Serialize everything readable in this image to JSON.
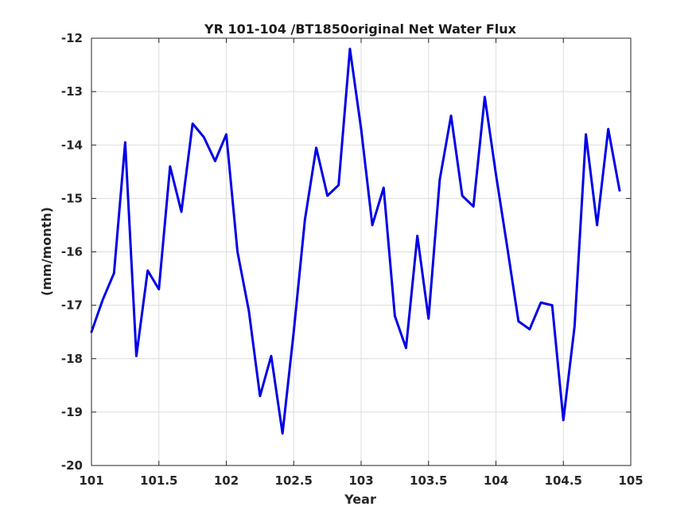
{
  "chart_data": {
    "type": "line",
    "title": "YR 101-104 /BT1850original Net Water Flux",
    "xlabel": "Year",
    "ylabel": "(mm/month)",
    "xlim": [
      101,
      105
    ],
    "ylim": [
      -20,
      -12
    ],
    "xticks": [
      101,
      101.5,
      102,
      102.5,
      103,
      103.5,
      104,
      104.5,
      105
    ],
    "xtick_labels": [
      "101",
      "101.5",
      "102",
      "102.5",
      "103",
      "103.5",
      "104",
      "104.5",
      "105"
    ],
    "yticks": [
      -12,
      -13,
      -14,
      -15,
      -16,
      -17,
      -18,
      -19,
      -20
    ],
    "ytick_labels": [
      "-12",
      "-13",
      "-14",
      "-15",
      "-16",
      "-17",
      "-18",
      "-19",
      "-20"
    ],
    "grid": true,
    "color": "#0000e6",
    "series": [
      {
        "x": [
          101.0,
          101.083,
          101.167,
          101.25,
          101.333,
          101.417,
          101.5,
          101.583,
          101.667,
          101.75,
          101.833,
          101.917,
          102.0,
          102.083,
          102.167,
          102.25,
          102.333,
          102.417,
          102.5,
          102.583,
          102.667,
          102.75,
          102.833,
          102.917,
          103.0,
          103.083,
          103.167,
          103.25,
          103.333,
          103.417,
          103.5,
          103.583,
          103.667,
          103.75,
          103.833,
          103.917,
          104.0,
          104.083,
          104.167,
          104.25,
          104.333,
          104.417,
          104.5,
          104.583,
          104.667,
          104.75,
          104.833,
          104.917
        ],
        "values": [
          -17.5,
          -16.9,
          -16.4,
          -13.95,
          -17.95,
          -16.35,
          -16.7,
          -14.4,
          -15.25,
          -13.6,
          -13.85,
          -14.3,
          -13.8,
          -16.0,
          -17.1,
          -18.7,
          -17.95,
          -19.4,
          -17.5,
          -15.4,
          -14.05,
          -14.95,
          -14.75,
          -12.2,
          -13.7,
          -15.5,
          -14.8,
          -17.2,
          -17.8,
          -15.7,
          -17.25,
          -14.65,
          -13.45,
          -14.95,
          -15.15,
          -13.1,
          -14.55,
          -15.9,
          -17.3,
          -17.45,
          -16.95,
          -17.0,
          -19.15,
          -17.4,
          -13.8,
          -15.5,
          -13.7,
          -14.85
        ]
      }
    ]
  }
}
